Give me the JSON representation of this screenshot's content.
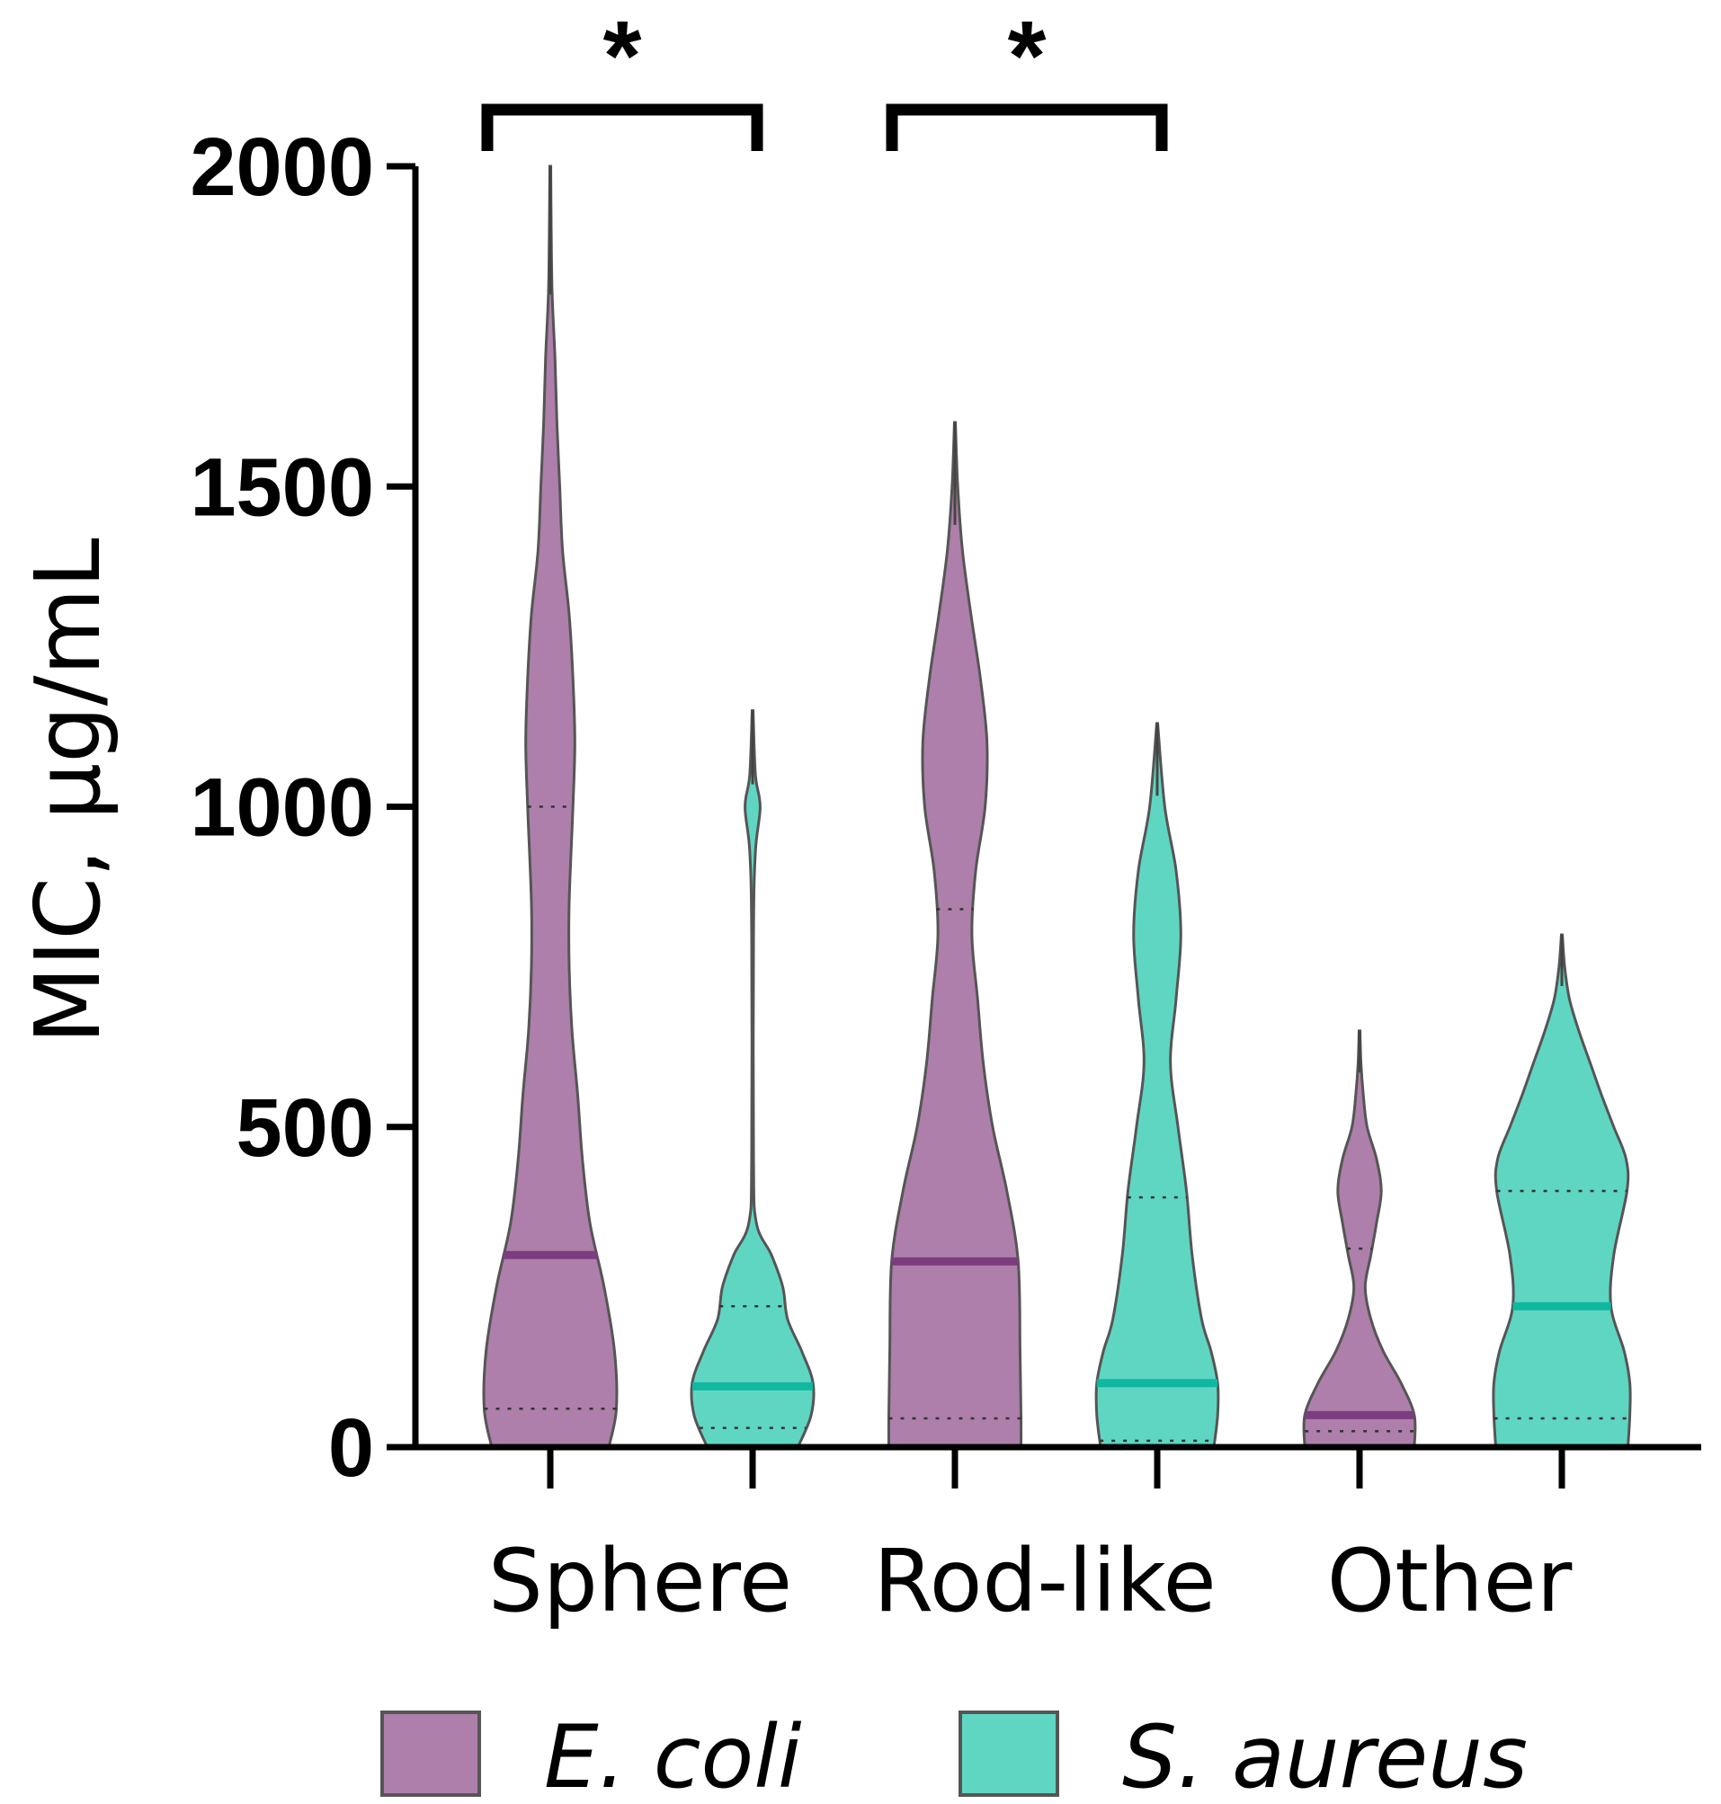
{
  "chart_data": {
    "type": "violin",
    "ylabel": "MIC, μg/mL",
    "xlabel": "",
    "ylim": [
      0,
      2000
    ],
    "yticks": [
      0,
      500,
      1000,
      1500,
      2000
    ],
    "categories": [
      "Sphere",
      "Rod-like",
      "Other"
    ],
    "series": [
      {
        "name": "E. coli",
        "legend_label": "E. coli",
        "fill": "#ae7fab",
        "stroke": "#555555",
        "median_color": "#7b3d7e",
        "groups": [
          {
            "category": "Sphere",
            "min": 0,
            "max": 2000,
            "median": 300,
            "q1": 60,
            "q3": 1000,
            "profile": [
              [
                0,
                0.62
              ],
              [
                60,
                0.7
              ],
              [
                150,
                0.68
              ],
              [
                250,
                0.57
              ],
              [
                350,
                0.42
              ],
              [
                450,
                0.34
              ],
              [
                550,
                0.29
              ],
              [
                650,
                0.23
              ],
              [
                750,
                0.2
              ],
              [
                850,
                0.2
              ],
              [
                1000,
                0.24
              ],
              [
                1100,
                0.26
              ],
              [
                1200,
                0.24
              ],
              [
                1300,
                0.2
              ],
              [
                1400,
                0.13
              ],
              [
                1500,
                0.1
              ],
              [
                1600,
                0.07
              ],
              [
                1700,
                0.05
              ],
              [
                1800,
                0.02
              ],
              [
                1900,
                0.01
              ],
              [
                2000,
                0.005
              ]
            ]
          },
          {
            "category": "Rod-like",
            "min": 0,
            "max": 1600,
            "median": 290,
            "q1": 45,
            "q3": 840,
            "profile": [
              [
                0,
                0.7
              ],
              [
                50,
                0.7
              ],
              [
                150,
                0.69
              ],
              [
                290,
                0.67
              ],
              [
                400,
                0.55
              ],
              [
                500,
                0.4
              ],
              [
                600,
                0.3
              ],
              [
                700,
                0.24
              ],
              [
                800,
                0.18
              ],
              [
                900,
                0.22
              ],
              [
                1000,
                0.32
              ],
              [
                1100,
                0.34
              ],
              [
                1200,
                0.27
              ],
              [
                1300,
                0.17
              ],
              [
                1400,
                0.08
              ],
              [
                1500,
                0.03
              ],
              [
                1600,
                0.005
              ]
            ]
          },
          {
            "category": "Other",
            "min": 0,
            "max": 650,
            "median": 50,
            "q1": 25,
            "q3": 310,
            "profile": [
              [
                0,
                0.58
              ],
              [
                50,
                0.58
              ],
              [
                100,
                0.44
              ],
              [
                150,
                0.25
              ],
              [
                200,
                0.12
              ],
              [
                250,
                0.06
              ],
              [
                300,
                0.12
              ],
              [
                350,
                0.18
              ],
              [
                400,
                0.23
              ],
              [
                450,
                0.18
              ],
              [
                500,
                0.08
              ],
              [
                550,
                0.04
              ],
              [
                600,
                0.015
              ],
              [
                650,
                0.005
              ]
            ]
          }
        ]
      },
      {
        "name": "S. aureus",
        "legend_label": "S. aureus",
        "fill": "#5fd6c2",
        "stroke": "#555555",
        "median_color": "#0fb89e",
        "groups": [
          {
            "category": "Sphere",
            "min": 0,
            "max": 1150,
            "median": 95,
            "q1": 30,
            "q3": 220,
            "profile": [
              [
                0,
                0.48
              ],
              [
                50,
                0.62
              ],
              [
                100,
                0.64
              ],
              [
                150,
                0.52
              ],
              [
                200,
                0.37
              ],
              [
                250,
                0.32
              ],
              [
                300,
                0.2
              ],
              [
                350,
                0.04
              ],
              [
                450,
                0.01
              ],
              [
                800,
                0.01
              ],
              [
                930,
                0.03
              ],
              [
                1000,
                0.08
              ],
              [
                1050,
                0.03
              ],
              [
                1150,
                0.005
              ]
            ]
          },
          {
            "category": "Rod-like",
            "min": 0,
            "max": 1130,
            "median": 100,
            "q1": 10,
            "q3": 390,
            "profile": [
              [
                0,
                0.6
              ],
              [
                50,
                0.64
              ],
              [
                100,
                0.64
              ],
              [
                150,
                0.57
              ],
              [
                200,
                0.47
              ],
              [
                300,
                0.37
              ],
              [
                400,
                0.31
              ],
              [
                500,
                0.22
              ],
              [
                600,
                0.14
              ],
              [
                700,
                0.2
              ],
              [
                800,
                0.25
              ],
              [
                900,
                0.2
              ],
              [
                1000,
                0.08
              ],
              [
                1130,
                0.005
              ]
            ]
          },
          {
            "category": "Other",
            "min": 0,
            "max": 800,
            "median": 220,
            "q1": 45,
            "q3": 400,
            "profile": [
              [
                0,
                0.7
              ],
              [
                50,
                0.72
              ],
              [
                100,
                0.72
              ],
              [
                150,
                0.66
              ],
              [
                220,
                0.52
              ],
              [
                300,
                0.55
              ],
              [
                400,
                0.69
              ],
              [
                450,
                0.68
              ],
              [
                500,
                0.55
              ],
              [
                550,
                0.42
              ],
              [
                600,
                0.3
              ],
              [
                650,
                0.18
              ],
              [
                700,
                0.08
              ],
              [
                750,
                0.03
              ],
              [
                800,
                0.005
              ]
            ]
          }
        ]
      }
    ],
    "significance": [
      {
        "category": "Sphere",
        "label": "*"
      },
      {
        "category": "Rod-like",
        "label": "*"
      }
    ]
  }
}
